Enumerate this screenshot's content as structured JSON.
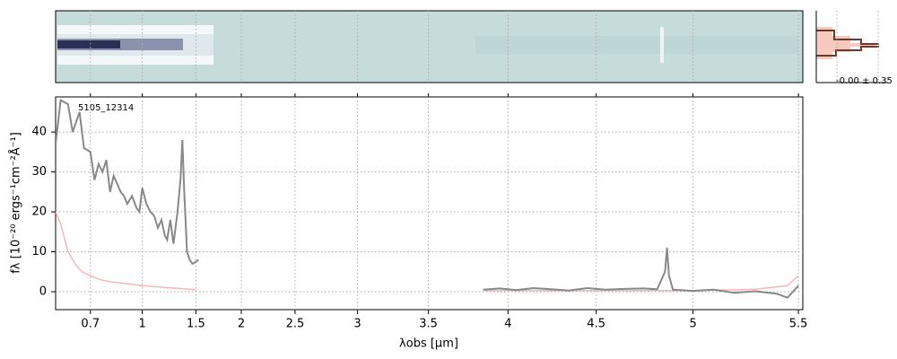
{
  "chart_data": {
    "type": "line",
    "label": "5105_12314",
    "stat_label": "-0.00 ± 0.35",
    "xlabel": "λobs [μm]",
    "ylabel": "fλ [10⁻²⁰ ergs⁻¹cm⁻²Å⁻¹]",
    "xlim": [
      0.55,
      5.52
    ],
    "ylim": [
      -4.5,
      48.8
    ],
    "xticks": [
      0.7,
      1.0,
      1.5,
      2.0,
      2.5,
      3.0,
      3.5,
      4.0,
      4.5,
      5.0,
      5.5
    ],
    "yticks": [
      0,
      10,
      20,
      30,
      40
    ],
    "grid": true,
    "series": [
      {
        "name": "flux",
        "color": "#888888",
        "x": [
          0.55,
          0.57,
          0.6,
          0.62,
          0.65,
          0.67,
          0.7,
          0.72,
          0.74,
          0.76,
          0.78,
          0.8,
          0.82,
          0.84,
          0.86,
          0.88,
          0.9,
          0.93,
          0.96,
          0.98,
          1.0,
          1.03,
          1.06,
          1.09,
          1.12,
          1.15,
          1.18,
          1.2,
          1.23,
          1.26,
          1.3,
          1.33,
          1.35,
          1.37,
          1.4,
          1.43,
          1.46,
          1.5,
          1.53,
          null,
          3.85,
          3.95,
          4.05,
          4.15,
          4.25,
          4.35,
          4.45,
          4.55,
          4.65,
          4.75,
          4.82,
          4.86,
          4.87,
          4.88,
          4.9,
          5.0,
          5.1,
          5.2,
          5.3,
          5.4,
          5.45,
          5.5
        ],
        "values": [
          37,
          48,
          47,
          40,
          45,
          36,
          35,
          28,
          32,
          30,
          33,
          25,
          29,
          27,
          25,
          24,
          22,
          24,
          21,
          20,
          26,
          22,
          20,
          19,
          16,
          18,
          14,
          13,
          18,
          12,
          20,
          28,
          38,
          25,
          10,
          8,
          7,
          7.5,
          8,
          null,
          0.5,
          0.8,
          0.4,
          0.9,
          0.6,
          0.3,
          0.9,
          0.5,
          0.7,
          0.8,
          0.6,
          5,
          11,
          4,
          0.5,
          0.2,
          0.5,
          -0.3,
          0.1,
          -0.5,
          -1.5,
          1.5
        ]
      },
      {
        "name": "error",
        "color": "#f4b8b8",
        "x": [
          0.55,
          0.57,
          0.6,
          0.63,
          0.66,
          0.7,
          0.75,
          0.8,
          0.9,
          1.0,
          1.2,
          1.5,
          null,
          3.85,
          4.5,
          5.0,
          5.3,
          5.45,
          5.5
        ],
        "values": [
          20,
          17,
          10,
          7,
          5,
          4,
          3,
          2.5,
          2,
          1.5,
          1,
          0.5,
          null,
          0.3,
          0.3,
          0.3,
          0.6,
          1.5,
          4
        ]
      }
    ]
  }
}
